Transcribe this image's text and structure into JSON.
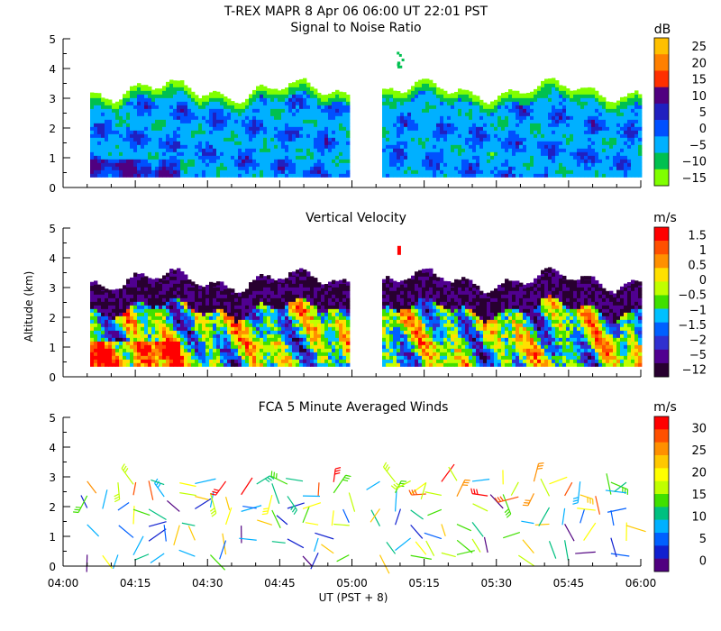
{
  "title": "T-REX  MAPR  8 Apr 06  06:00 UT  22:01  PST",
  "xlabel": "UT  (PST + 8)",
  "ylabel": "Altitude (km)",
  "x_ticks": [
    "04:00",
    "04:15",
    "04:30",
    "04:45",
    "05:00",
    "05:15",
    "05:30",
    "05:45",
    "06:00"
  ],
  "y_ticks": [
    "0",
    "1",
    "2",
    "3",
    "4",
    "5"
  ],
  "chart_data": [
    {
      "type": "heatmap",
      "title": "Signal to Noise Ratio",
      "xlabel": "UT  (PST + 8)",
      "ylabel": "Altitude (km)",
      "xlim": [
        "04:00",
        "06:00"
      ],
      "ylim": [
        0,
        5
      ],
      "data_gap": [
        "05:00",
        "05:05"
      ],
      "colorbar": {
        "unit": "dB",
        "ticks": [
          "25",
          "20",
          "15",
          "10",
          "5",
          "0",
          "−5",
          "−10",
          "−15"
        ],
        "colors": [
          "#ffc000",
          "#ff8000",
          "#ff3000",
          "#500080",
          "#2020c0",
          "#0050ff",
          "#00b0ff",
          "#00c050",
          "#80ff00"
        ]
      }
    },
    {
      "type": "heatmap",
      "title": "Vertical Velocity",
      "xlabel": "UT  (PST + 8)",
      "ylabel": "Altitude (km)",
      "xlim": [
        "04:00",
        "06:00"
      ],
      "ylim": [
        0,
        5
      ],
      "data_gap": [
        "05:00",
        "05:05"
      ],
      "colorbar": {
        "unit": "m/s",
        "ticks": [
          "1.5",
          "1",
          "0.5",
          "0",
          "−0.5",
          "−1",
          "−1.5",
          "−2",
          "−5",
          "−12"
        ],
        "colors": [
          "#ff0000",
          "#ff5000",
          "#ff9000",
          "#ffe000",
          "#c0ff00",
          "#40e000",
          "#00c0ff",
          "#0060ff",
          "#3030d0",
          "#500090",
          "#280030"
        ]
      }
    },
    {
      "type": "scatter",
      "title": "FCA 5 Minute Averaged Winds",
      "xlabel": "UT  (PST + 8)",
      "ylabel": "Altitude (km)",
      "xlim": [
        "04:00",
        "06:00"
      ],
      "ylim": [
        0,
        5
      ],
      "colorbar": {
        "unit": "m/s",
        "ticks": [
          "30",
          "25",
          "20",
          "15",
          "10",
          "5",
          "0"
        ],
        "colors": [
          "#ff0000",
          "#ff5000",
          "#ff9000",
          "#ffc800",
          "#ffff00",
          "#c0ff00",
          "#40e000",
          "#00c080",
          "#00b0ff",
          "#0060ff",
          "#1020d0",
          "#500080"
        ]
      }
    }
  ]
}
